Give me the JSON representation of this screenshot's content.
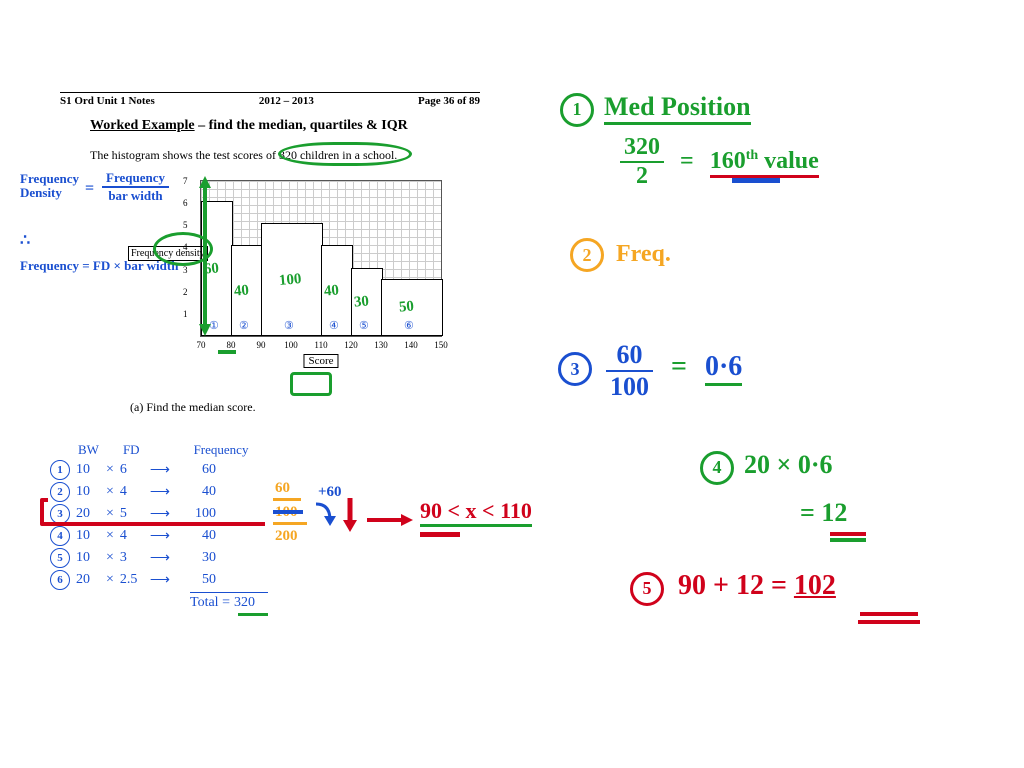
{
  "printed": {
    "header_left": "S1 Ord Unit 1 Notes",
    "header_mid": "2012 – 2013",
    "header_right": "Page 36 of 89",
    "title_u": "Worked Example",
    "title_rest": " – find the median, quartiles & IQR",
    "subtitle_a": "The histogram shows the test scores of ",
    "subtitle_b": "320 children in a school.",
    "q_a": "(a)    Find the median score."
  },
  "blue_notes": {
    "fd_label": "Frequency",
    "fd_label2": "Density",
    "fd_eq_num": "Frequency",
    "fd_eq_den": "bar width",
    "therefore": "∴",
    "freq_eq": "Frequency = FD × bar width"
  },
  "chart": {
    "x_ticks": [
      "70",
      "80",
      "90",
      "100",
      "110",
      "120",
      "130",
      "140",
      "150"
    ],
    "y_ticks": [
      "1",
      "2",
      "3",
      "4",
      "5",
      "6",
      "7"
    ],
    "x_title": "Score",
    "y_title": "Frequency\ndensity",
    "bars": [
      {
        "x": 0,
        "w": 1,
        "h": 6,
        "annot": "60",
        "num": "①"
      },
      {
        "x": 1,
        "w": 1,
        "h": 4,
        "annot": "40",
        "num": "②"
      },
      {
        "x": 2,
        "w": 2,
        "h": 5,
        "annot": "100",
        "num": "③"
      },
      {
        "x": 4,
        "w": 1,
        "h": 4,
        "annot": "40",
        "num": "④"
      },
      {
        "x": 5,
        "w": 1,
        "h": 3,
        "annot": "30",
        "num": "⑤"
      },
      {
        "x": 6,
        "w": 2,
        "h": 2.5,
        "annot": "50",
        "num": "⑥"
      }
    ]
  },
  "table": {
    "hdr_bw": "BW",
    "hdr_fd": "FD",
    "hdr_freq": "Frequency",
    "rows": [
      {
        "n": "①",
        "bw": "10",
        "op": "×",
        "fd": "6",
        "freq": "60"
      },
      {
        "n": "②",
        "bw": "10",
        "op": "×",
        "fd": "4",
        "freq": "40"
      },
      {
        "n": "③",
        "bw": "20",
        "op": "×",
        "fd": "5",
        "freq": "100"
      },
      {
        "n": "④",
        "bw": "10",
        "op": "×",
        "fd": "4",
        "freq": "40"
      },
      {
        "n": "⑤",
        "bw": "10",
        "op": "×",
        "fd": "3",
        "freq": "30"
      },
      {
        "n": "⑥",
        "bw": "20",
        "op": "×",
        "fd": "2.5",
        "freq": "50"
      }
    ],
    "total_lbl": "Total =",
    "total": "320"
  },
  "cumul": {
    "a": "60",
    "b": "100",
    "c": "200",
    "plus": "+60"
  },
  "range_text": "90 < x < 110",
  "steps": {
    "s1_title": "Med Position",
    "s1_frac_num": "320",
    "s1_frac_den": "2",
    "s1_eq": "=",
    "s1_res": "160",
    "s1_th": "th",
    "s1_val": " value",
    "s2": "Freq.",
    "s3_num": "60",
    "s3_den": "100",
    "s3_eq": "=",
    "s3_res": "0·6",
    "s4_a": "20 × 0·6",
    "s4_b": "= 12",
    "s5": "90 + 12 = ",
    "s5_res": "102"
  },
  "colors": {
    "green": "#1a9e2e",
    "blue": "#1a4fd0",
    "orange": "#f5a623",
    "red": "#d0021b"
  }
}
